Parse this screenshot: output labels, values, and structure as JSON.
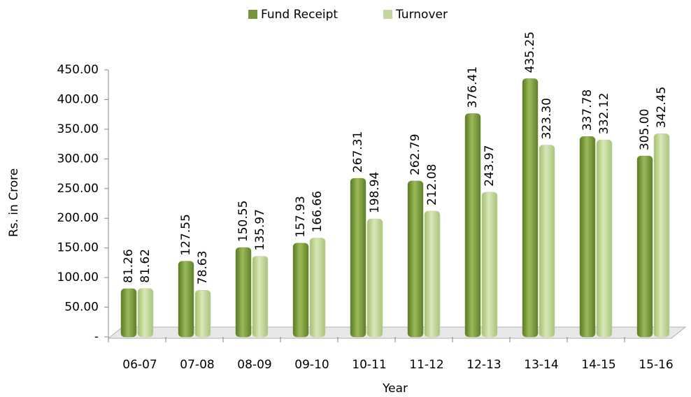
{
  "chart_data": {
    "type": "bar",
    "categories": [
      "06-07",
      "07-08",
      "08-09",
      "09-10",
      "10-11",
      "11-12",
      "12-13",
      "13-14",
      "14-15",
      "15-16"
    ],
    "series": [
      {
        "name": "Fund Receipt",
        "color": "#77933c",
        "values": [
          81.26,
          127.55,
          150.55,
          157.93,
          267.31,
          262.79,
          376.41,
          435.25,
          337.78,
          305.0
        ],
        "value_labels": [
          "81.26",
          "127.55",
          "150.55",
          "157.93",
          "267.31",
          "262.79",
          "376.41",
          "435.25",
          "337.78",
          "305.00"
        ]
      },
      {
        "name": "Turnover",
        "color": "#c3d69b",
        "values": [
          81.62,
          78.63,
          135.97,
          166.66,
          198.94,
          212.08,
          243.97,
          323.3,
          332.12,
          342.45
        ],
        "value_labels": [
          "81.62",
          "78.63",
          "135.97",
          "166.66",
          "198.94",
          "212.08",
          "243.97",
          "323.30",
          "332.12",
          "342.45"
        ]
      }
    ],
    "xlabel": "Year",
    "ylabel": "Rs. in Crore",
    "ylim": [
      0,
      450
    ],
    "yticks": [
      {
        "value": 0,
        "label": "-"
      },
      {
        "value": 50,
        "label": "50.00"
      },
      {
        "value": 100,
        "label": "100.00"
      },
      {
        "value": 150,
        "label": "150.00"
      },
      {
        "value": 200,
        "label": "200.00"
      },
      {
        "value": 250,
        "label": "250.00"
      },
      {
        "value": 300,
        "label": "300.00"
      },
      {
        "value": 350,
        "label": "350.00"
      },
      {
        "value": 400,
        "label": "400.00"
      },
      {
        "value": 450,
        "label": "450.00"
      }
    ],
    "legend": "top"
  }
}
